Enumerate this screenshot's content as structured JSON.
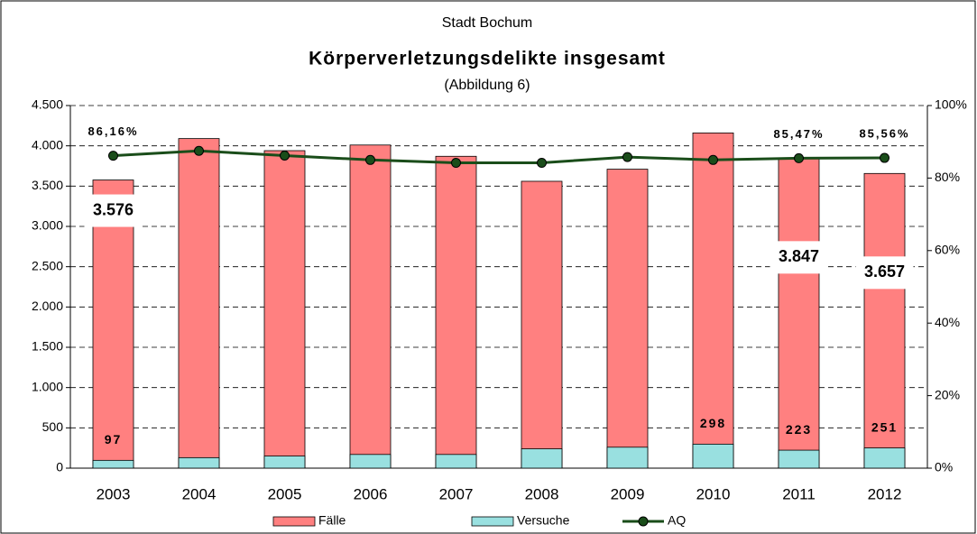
{
  "chart_data": {
    "type": "bar",
    "title": "Körperverletzungsdelikte insgesamt",
    "supertitle": "Stadt Bochum",
    "subtitle": "(Abbildung 6)",
    "categories": [
      "2003",
      "2004",
      "2005",
      "2006",
      "2007",
      "2008",
      "2009",
      "2010",
      "2011",
      "2012"
    ],
    "series": [
      {
        "name": "Fälle",
        "type": "bar",
        "color": "#ff8080",
        "values": [
          3576,
          4090,
          3940,
          4010,
          3870,
          3560,
          3710,
          4160,
          3847,
          3657
        ],
        "value_labels": [
          "3.576",
          null,
          null,
          null,
          null,
          null,
          null,
          null,
          "3.847",
          "3.657"
        ]
      },
      {
        "name": "Versuche",
        "type": "bar",
        "color": "#99e0e0",
        "values": [
          97,
          130,
          150,
          170,
          170,
          240,
          260,
          298,
          223,
          251
        ],
        "value_labels": [
          "97",
          null,
          null,
          null,
          null,
          null,
          null,
          "298",
          "223",
          "251"
        ]
      },
      {
        "name": "AQ",
        "type": "line",
        "axis": "y2",
        "color": "#1a4d1a",
        "values": [
          86.16,
          87.5,
          86.2,
          85.0,
          84.2,
          84.2,
          85.8,
          85.0,
          85.47,
          85.56
        ],
        "value_labels": [
          "86,16%",
          null,
          null,
          null,
          null,
          null,
          null,
          null,
          "85,47%",
          "85,56%"
        ]
      }
    ],
    "ylim": [
      0,
      4500
    ],
    "yticks": [
      0,
      500,
      {
        "value": 1000,
        "label": "1.000"
      },
      {
        "value": 1500,
        "label": "1.500"
      },
      {
        "value": 2000,
        "label": "2.000"
      },
      {
        "value": 2500,
        "label": "2.500"
      },
      {
        "value": 3000,
        "label": "3.000"
      },
      {
        "value": 3500,
        "label": "3.500"
      },
      {
        "value": 4000,
        "label": "4.000"
      },
      {
        "value": 4500,
        "label": "4.500"
      }
    ],
    "y2lim": [
      0,
      100
    ],
    "y2ticks": [
      {
        "value": 0,
        "label": "0%"
      },
      {
        "value": 20,
        "label": "20%"
      },
      {
        "value": 40,
        "label": "40%"
      },
      {
        "value": 60,
        "label": "60%"
      },
      {
        "value": 80,
        "label": "80%"
      },
      {
        "value": 100,
        "label": "100%"
      }
    ],
    "grid": true,
    "legend": "bottom"
  }
}
